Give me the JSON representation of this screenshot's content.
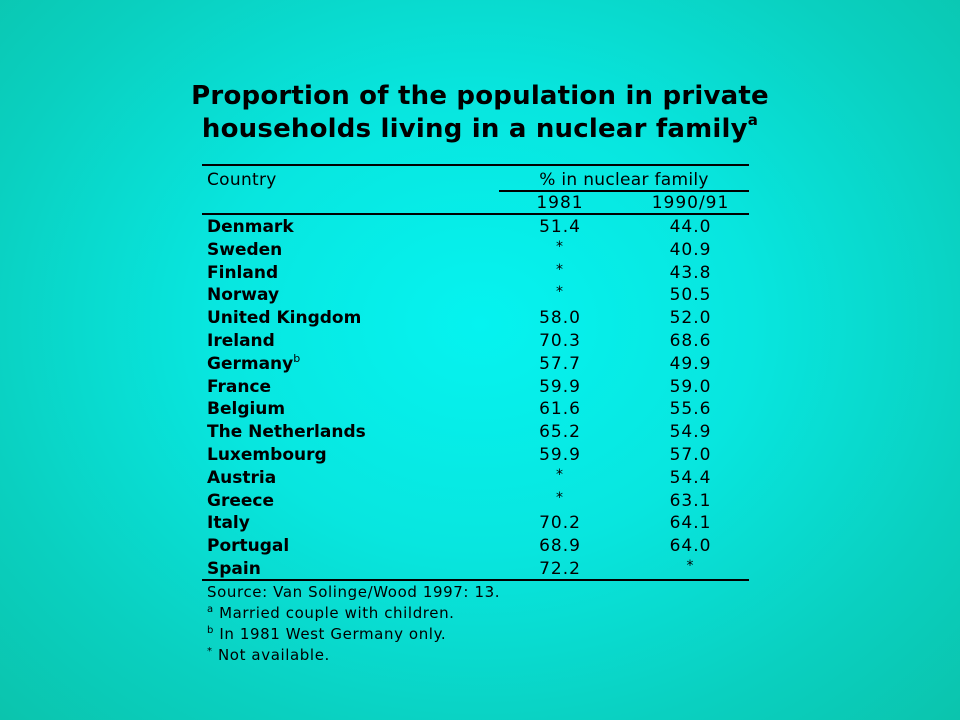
{
  "title": {
    "line1": "Proportion of the population in private",
    "line2": "households living in a nuclear family",
    "line2_sup": "a"
  },
  "table": {
    "header": {
      "country": "Country",
      "group": "% in nuclear family",
      "col1": "1981",
      "col2": "1990/91"
    },
    "rows": [
      {
        "country": "Denmark",
        "sup": "",
        "v1981": "51.4",
        "v1990": "44.0"
      },
      {
        "country": "Sweden",
        "sup": "",
        "v1981": "*",
        "v1990": "40.9"
      },
      {
        "country": "Finland",
        "sup": "",
        "v1981": "*",
        "v1990": "43.8"
      },
      {
        "country": "Norway",
        "sup": "",
        "v1981": "*",
        "v1990": "50.5"
      },
      {
        "country": "United Kingdom",
        "sup": "",
        "v1981": "58.0",
        "v1990": "52.0"
      },
      {
        "country": "Ireland",
        "sup": "",
        "v1981": "70.3",
        "v1990": "68.6"
      },
      {
        "country": "Germany",
        "sup": "b",
        "v1981": "57.7",
        "v1990": "49.9"
      },
      {
        "country": "France",
        "sup": "",
        "v1981": "59.9",
        "v1990": "59.0"
      },
      {
        "country": "Belgium",
        "sup": "",
        "v1981": "61.6",
        "v1990": "55.6"
      },
      {
        "country": "The Netherlands",
        "sup": "",
        "v1981": "65.2",
        "v1990": "54.9"
      },
      {
        "country": "Luxembourg",
        "sup": "",
        "v1981": "59.9",
        "v1990": "57.0"
      },
      {
        "country": "Austria",
        "sup": "",
        "v1981": "*",
        "v1990": "54.4"
      },
      {
        "country": "Greece",
        "sup": "",
        "v1981": "*",
        "v1990": "63.1"
      },
      {
        "country": "Italy",
        "sup": "",
        "v1981": "70.2",
        "v1990": "64.1"
      },
      {
        "country": "Portugal",
        "sup": "",
        "v1981": "68.9",
        "v1990": "64.0"
      },
      {
        "country": "Spain",
        "sup": "",
        "v1981": "72.2",
        "v1990": "*"
      }
    ]
  },
  "notes": [
    {
      "sup": "",
      "text": "Source: Van Solinge/Wood 1997: 13."
    },
    {
      "sup": "a",
      "text": " Married couple with children."
    },
    {
      "sup": "b",
      "text": " In 1981 West Germany only."
    },
    {
      "sup": "*",
      "text": " Not available."
    }
  ]
}
